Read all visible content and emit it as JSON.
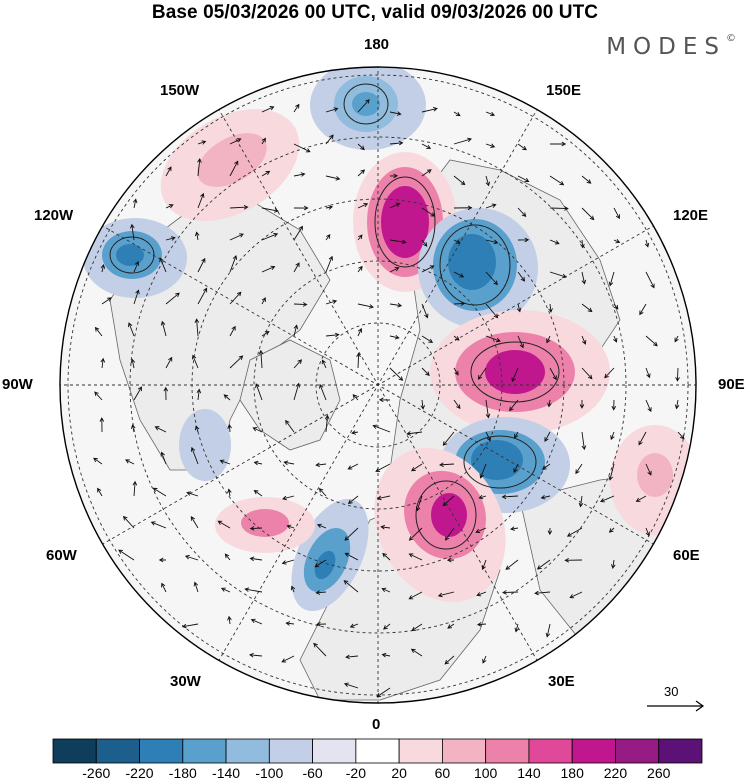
{
  "header": {
    "title": "Base 05/03/2026 00 UTC, valid 09/03/2026 00 UTC",
    "brand": "MODES",
    "brand_mark": "©"
  },
  "longitude_labels": {
    "lon_180": "180",
    "lon_150e": "150E",
    "lon_120e": "120E",
    "lon_90e": "90E",
    "lon_60e": "60E",
    "lon_30e": "30E",
    "lon_0": "0",
    "lon_30w": "30W",
    "lon_60w": "60W",
    "lon_90w": "90W",
    "lon_120w": "120W",
    "lon_150w": "150W"
  },
  "vector_reference": {
    "value": "30"
  },
  "colorbar": {
    "levels": [
      "-260",
      "-220",
      "-180",
      "-140",
      "-100",
      "-60",
      "-20",
      "20",
      "60",
      "100",
      "140",
      "180",
      "220",
      "260"
    ],
    "colors": [
      "#0f3d5c",
      "#1d5f8c",
      "#2d7fb5",
      "#5aa0cc",
      "#91bcdd",
      "#c3cfe6",
      "#e4e4f1",
      "#ffffff",
      "#f8dade",
      "#f2b3c2",
      "#ec82aa",
      "#e0489a",
      "#c1178e",
      "#961b84",
      "#5c1176"
    ]
  },
  "anomalies": [
    {
      "name": "anom-180-north",
      "sign": "neg",
      "strength": 2
    },
    {
      "name": "anom-150w",
      "sign": "pos",
      "strength": 1
    },
    {
      "name": "anom-120w",
      "sign": "neg",
      "strength": 3
    },
    {
      "name": "anom-160e",
      "sign": "pos",
      "strength": 5
    },
    {
      "name": "anom-130e",
      "sign": "neg",
      "strength": 4
    },
    {
      "name": "anom-95e",
      "sign": "pos",
      "strength": 4
    },
    {
      "name": "anom-60e-north",
      "sign": "neg",
      "strength": 4
    },
    {
      "name": "anom-25e",
      "sign": "pos",
      "strength": 4
    },
    {
      "name": "anom-55e-south",
      "sign": "pos",
      "strength": 1
    },
    {
      "name": "anom-10w",
      "sign": "neg",
      "strength": 4
    },
    {
      "name": "anom-55w",
      "sign": "pos",
      "strength": 2
    },
    {
      "name": "anom-75w",
      "sign": "neg",
      "strength": 1
    }
  ]
}
